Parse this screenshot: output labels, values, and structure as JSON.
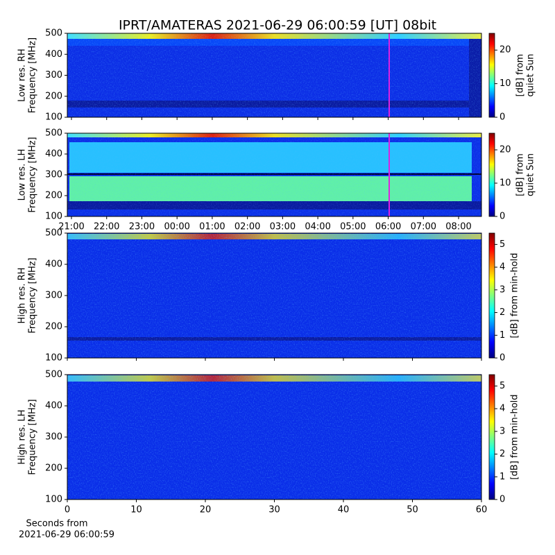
{
  "chart_data": [
    {
      "type": "heatmap",
      "title": "IPRT/AMATERAS 2021-06-29 06:00:59 [UT]   08bit",
      "ylabel": [
        "Low res. RH",
        "Frequency [MHz]"
      ],
      "ylim": [
        100,
        500
      ],
      "yticks": [
        100,
        200,
        300,
        400,
        500
      ],
      "colorbar": {
        "label": [
          "[dB] from",
          "quiet Sun"
        ],
        "lim": [
          0,
          25
        ],
        "ticks": [
          0,
          10,
          20
        ]
      }
    },
    {
      "type": "heatmap",
      "ylabel": [
        "Low res. LH",
        "Frequency [MHz]"
      ],
      "ylim": [
        100,
        500
      ],
      "yticks": [
        100,
        200,
        300,
        400,
        500
      ],
      "xticks": [
        "21:00",
        "22:00",
        "23:00",
        "00:00",
        "01:00",
        "02:00",
        "03:00",
        "04:00",
        "05:00",
        "06:00",
        "07:00",
        "08:00"
      ],
      "colorbar": {
        "label": [
          "[dB] from",
          "quiet Sun"
        ],
        "lim": [
          0,
          25
        ],
        "ticks": [
          0,
          10,
          20
        ]
      }
    },
    {
      "type": "heatmap",
      "ylabel": [
        "High res. RH",
        "Frequency [MHz]"
      ],
      "ylim": [
        100,
        500
      ],
      "yticks": [
        100,
        200,
        300,
        400,
        500
      ],
      "colorbar": {
        "label": [
          "[dB] from min-hold"
        ],
        "lim": [
          0,
          5.5
        ],
        "ticks": [
          0,
          1,
          2,
          3,
          4,
          5
        ]
      }
    },
    {
      "type": "heatmap",
      "ylabel": [
        "High res. LH",
        "Frequency [MHz]"
      ],
      "ylim": [
        100,
        500
      ],
      "yticks": [
        100,
        200,
        300,
        400,
        500
      ],
      "xlabel": [
        "Seconds from",
        "2021-06-29 06:00:59"
      ],
      "xlim": [
        0,
        60
      ],
      "xticks": [
        0,
        10,
        20,
        30,
        40,
        50,
        60
      ],
      "colorbar": {
        "label": [
          "[dB] from min-hold"
        ],
        "lim": [
          0,
          5.5
        ],
        "ticks": [
          0,
          1,
          2,
          3,
          4,
          5
        ]
      }
    }
  ]
}
